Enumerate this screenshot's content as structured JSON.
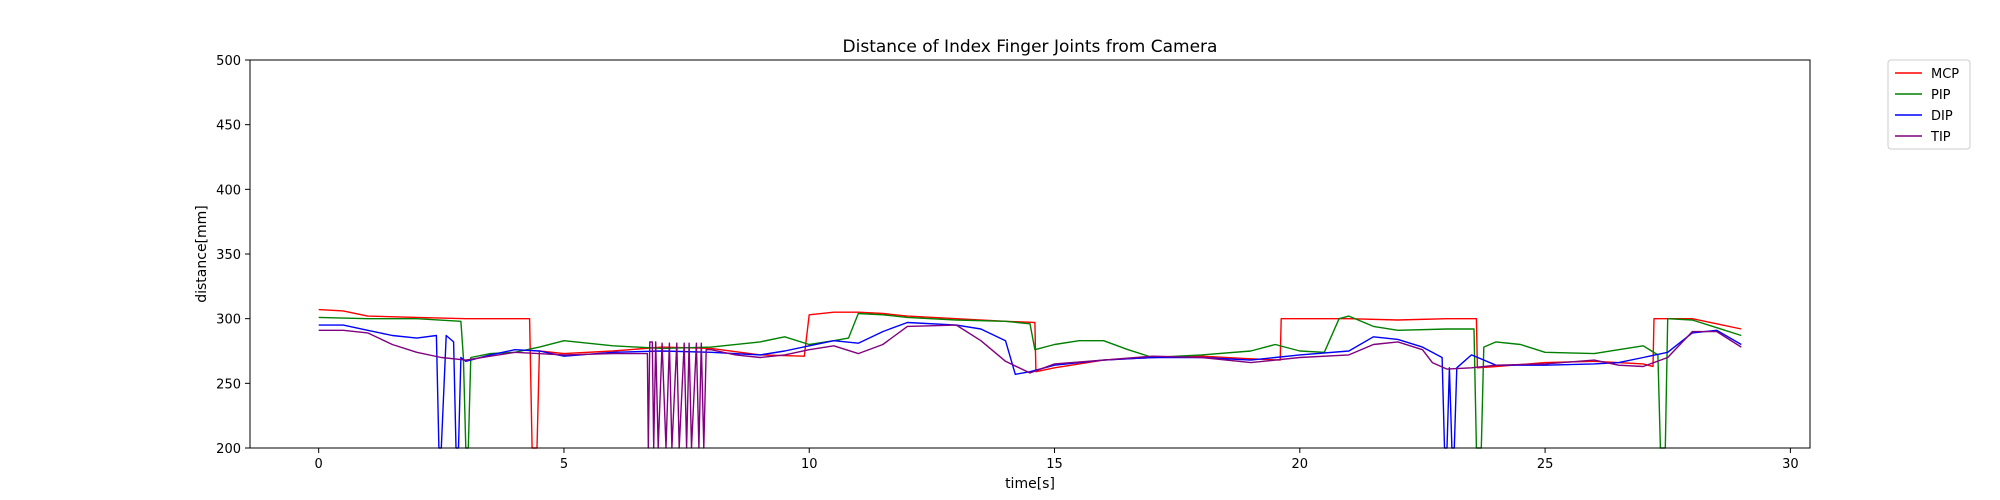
{
  "chart_data": {
    "type": "line",
    "title": "Distance of Index Finger Joints from Camera",
    "xlabel": "time[s]",
    "ylabel": "distance[mm]",
    "xlim": [
      -1.4,
      30.4
    ],
    "ylim": [
      200,
      500
    ],
    "xticks": [
      0,
      5,
      10,
      15,
      20,
      25,
      30
    ],
    "yticks": [
      200,
      250,
      300,
      350,
      400,
      450,
      500
    ],
    "grid": false,
    "legend_position": "outside-top-right",
    "series": [
      {
        "name": "MCP",
        "color": "#ff0000",
        "points": [
          [
            0,
            307
          ],
          [
            0.5,
            306
          ],
          [
            1,
            302
          ],
          [
            2,
            301
          ],
          [
            3,
            300
          ],
          [
            3.5,
            300
          ],
          [
            4.3,
            300
          ],
          [
            4.35,
            200
          ],
          [
            4.45,
            200
          ],
          [
            4.5,
            275
          ],
          [
            5,
            273
          ],
          [
            6,
            275
          ],
          [
            7,
            278
          ],
          [
            8,
            277
          ],
          [
            9,
            272
          ],
          [
            9.9,
            271
          ],
          [
            10,
            303
          ],
          [
            10.5,
            305
          ],
          [
            11,
            305
          ],
          [
            11.5,
            304
          ],
          [
            12,
            302
          ],
          [
            13,
            300
          ],
          [
            14,
            298
          ],
          [
            14.6,
            297
          ],
          [
            14.62,
            259
          ],
          [
            15,
            262
          ],
          [
            16,
            268
          ],
          [
            17,
            270
          ],
          [
            18,
            271
          ],
          [
            19,
            269
          ],
          [
            19.6,
            268
          ],
          [
            19.62,
            300
          ],
          [
            20,
            300
          ],
          [
            21,
            300
          ],
          [
            22,
            299
          ],
          [
            23,
            300
          ],
          [
            23.6,
            300
          ],
          [
            23.62,
            262
          ],
          [
            24,
            263
          ],
          [
            25,
            266
          ],
          [
            26,
            267
          ],
          [
            27,
            265
          ],
          [
            27.2,
            263
          ],
          [
            27.22,
            300
          ],
          [
            28,
            300
          ],
          [
            28.5,
            296
          ],
          [
            29,
            292
          ]
        ]
      },
      {
        "name": "PIP",
        "color": "#008000",
        "points": [
          [
            0,
            301
          ],
          [
            1,
            300
          ],
          [
            2,
            300
          ],
          [
            2.9,
            298
          ],
          [
            2.95,
            270
          ],
          [
            3,
            200
          ],
          [
            3.05,
            200
          ],
          [
            3.1,
            270
          ],
          [
            3.5,
            273
          ],
          [
            4,
            274
          ],
          [
            4.5,
            278
          ],
          [
            5,
            283
          ],
          [
            6,
            279
          ],
          [
            7,
            277
          ],
          [
            8,
            278
          ],
          [
            9,
            282
          ],
          [
            9.5,
            286
          ],
          [
            10,
            280
          ],
          [
            10.5,
            283
          ],
          [
            10.8,
            285
          ],
          [
            11,
            304
          ],
          [
            11.5,
            303
          ],
          [
            12,
            301
          ],
          [
            13,
            299
          ],
          [
            14,
            298
          ],
          [
            14.5,
            296
          ],
          [
            14.6,
            276
          ],
          [
            15,
            280
          ],
          [
            15.5,
            283
          ],
          [
            16,
            283
          ],
          [
            16.5,
            276
          ],
          [
            17,
            270
          ],
          [
            18,
            272
          ],
          [
            19,
            275
          ],
          [
            19.5,
            280
          ],
          [
            20,
            275
          ],
          [
            20.5,
            274
          ],
          [
            20.8,
            300
          ],
          [
            21,
            302
          ],
          [
            21.5,
            294
          ],
          [
            22,
            291
          ],
          [
            23,
            292
          ],
          [
            23.55,
            292
          ],
          [
            23.6,
            200
          ],
          [
            23.7,
            200
          ],
          [
            23.75,
            278
          ],
          [
            24,
            282
          ],
          [
            24.5,
            280
          ],
          [
            25,
            274
          ],
          [
            26,
            273
          ],
          [
            26.5,
            276
          ],
          [
            27,
            279
          ],
          [
            27.3,
            272
          ],
          [
            27.35,
            200
          ],
          [
            27.45,
            200
          ],
          [
            27.5,
            300
          ],
          [
            28,
            299
          ],
          [
            28.5,
            293
          ],
          [
            29,
            287
          ]
        ]
      },
      {
        "name": "DIP",
        "color": "#0000ff",
        "points": [
          [
            0,
            295
          ],
          [
            0.5,
            295
          ],
          [
            1,
            291
          ],
          [
            1.5,
            287
          ],
          [
            2,
            285
          ],
          [
            2.4,
            287
          ],
          [
            2.45,
            200
          ],
          [
            2.5,
            200
          ],
          [
            2.6,
            287
          ],
          [
            2.75,
            282
          ],
          [
            2.8,
            200
          ],
          [
            2.85,
            200
          ],
          [
            2.9,
            270
          ],
          [
            3,
            267
          ],
          [
            3.5,
            272
          ],
          [
            4,
            276
          ],
          [
            4.5,
            275
          ],
          [
            5,
            271
          ],
          [
            6,
            274
          ],
          [
            7,
            275
          ],
          [
            8,
            274
          ],
          [
            9,
            272
          ],
          [
            9.5,
            275
          ],
          [
            10,
            279
          ],
          [
            10.5,
            283
          ],
          [
            11,
            281
          ],
          [
            11.5,
            290
          ],
          [
            12,
            297
          ],
          [
            13,
            295
          ],
          [
            13.5,
            292
          ],
          [
            14,
            283
          ],
          [
            14.2,
            257
          ],
          [
            14.5,
            259
          ],
          [
            15,
            264
          ],
          [
            16,
            268
          ],
          [
            17,
            270
          ],
          [
            18,
            270
          ],
          [
            19,
            268
          ],
          [
            19.5,
            270
          ],
          [
            20,
            272
          ],
          [
            21,
            275
          ],
          [
            21.5,
            286
          ],
          [
            22,
            284
          ],
          [
            22.5,
            278
          ],
          [
            22.9,
            270
          ],
          [
            22.95,
            200
          ],
          [
            23,
            200
          ],
          [
            23.05,
            262
          ],
          [
            23.1,
            200
          ],
          [
            23.15,
            200
          ],
          [
            23.2,
            262
          ],
          [
            23.5,
            272
          ],
          [
            24,
            264
          ],
          [
            25,
            264
          ],
          [
            26,
            265
          ],
          [
            26.5,
            266
          ],
          [
            27,
            270
          ],
          [
            27.5,
            274
          ],
          [
            28,
            289
          ],
          [
            28.5,
            291
          ],
          [
            29,
            280
          ]
        ]
      },
      {
        "name": "TIP",
        "color": "#800080",
        "points": [
          [
            0,
            291
          ],
          [
            0.5,
            291
          ],
          [
            1,
            289
          ],
          [
            1.5,
            280
          ],
          [
            2,
            274
          ],
          [
            2.5,
            270
          ],
          [
            3,
            268
          ],
          [
            3.5,
            271
          ],
          [
            4,
            274
          ],
          [
            5,
            272
          ],
          [
            6,
            273
          ],
          [
            6.7,
            273
          ],
          [
            6.72,
            200
          ],
          [
            6.75,
            282
          ],
          [
            6.8,
            282
          ],
          [
            6.83,
            200
          ],
          [
            6.87,
            282
          ],
          [
            6.92,
            200
          ],
          [
            7,
            281
          ],
          [
            7.08,
            200
          ],
          [
            7.15,
            281
          ],
          [
            7.2,
            200
          ],
          [
            7.3,
            281
          ],
          [
            7.35,
            200
          ],
          [
            7.45,
            281
          ],
          [
            7.5,
            200
          ],
          [
            7.55,
            281
          ],
          [
            7.6,
            200
          ],
          [
            7.7,
            281
          ],
          [
            7.75,
            200
          ],
          [
            7.8,
            281
          ],
          [
            7.85,
            200
          ],
          [
            7.9,
            276
          ],
          [
            8,
            276
          ],
          [
            8.5,
            272
          ],
          [
            9,
            270
          ],
          [
            9.5,
            272
          ],
          [
            10,
            276
          ],
          [
            10.5,
            279
          ],
          [
            11,
            273
          ],
          [
            11.5,
            280
          ],
          [
            12,
            294
          ],
          [
            13,
            295
          ],
          [
            13.5,
            283
          ],
          [
            14,
            267
          ],
          [
            14.5,
            258
          ],
          [
            15,
            265
          ],
          [
            16,
            268
          ],
          [
            17,
            271
          ],
          [
            18,
            270
          ],
          [
            19,
            266
          ],
          [
            19.5,
            268
          ],
          [
            20,
            270
          ],
          [
            21,
            272
          ],
          [
            21.5,
            280
          ],
          [
            22,
            282
          ],
          [
            22.5,
            276
          ],
          [
            22.7,
            266
          ],
          [
            23,
            261
          ],
          [
            23.5,
            262
          ],
          [
            24,
            264
          ],
          [
            25,
            265
          ],
          [
            26,
            268
          ],
          [
            26.5,
            264
          ],
          [
            27,
            263
          ],
          [
            27.5,
            270
          ],
          [
            28,
            290
          ],
          [
            28.5,
            290
          ],
          [
            29,
            278
          ]
        ]
      }
    ]
  }
}
